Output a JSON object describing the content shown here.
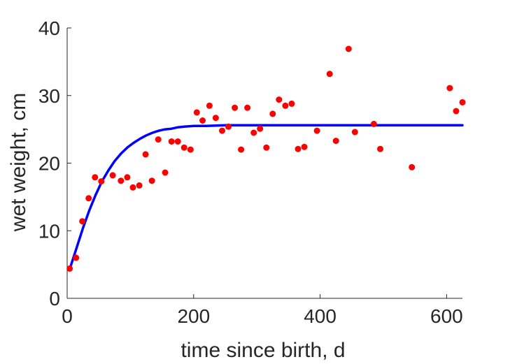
{
  "chart_data": {
    "type": "scatter",
    "xlabel": "time since birth, d",
    "ylabel": "wet weight, cm",
    "xlim": [
      0,
      625
    ],
    "ylim": [
      0,
      40
    ],
    "xticks": [
      {
        "value": 0,
        "label": "0"
      },
      {
        "value": 200,
        "label": "200"
      },
      {
        "value": 400,
        "label": "400"
      },
      {
        "value": 600,
        "label": "600"
      }
    ],
    "yticks": [
      {
        "value": 0,
        "label": "0"
      },
      {
        "value": 10,
        "label": "10"
      },
      {
        "value": 20,
        "label": "20"
      },
      {
        "value": 30,
        "label": "30"
      },
      {
        "value": 40,
        "label": "40"
      }
    ],
    "grid": false,
    "series": [
      {
        "kind": "points",
        "color": "#ff0000",
        "points": [
          [
            4,
            4.4
          ],
          [
            14,
            6.0
          ],
          [
            24,
            11.4
          ],
          [
            34,
            14.8
          ],
          [
            44,
            17.9
          ],
          [
            54,
            17.3
          ],
          [
            72,
            18.2
          ],
          [
            85,
            17.4
          ],
          [
            95,
            17.9
          ],
          [
            104,
            16.4
          ],
          [
            114,
            16.7
          ],
          [
            124,
            21.3
          ],
          [
            134,
            17.4
          ],
          [
            144,
            23.5
          ],
          [
            155,
            18.6
          ],
          [
            165,
            23.2
          ],
          [
            175,
            23.2
          ],
          [
            185,
            22.3
          ],
          [
            195,
            22.0
          ],
          [
            205,
            27.5
          ],
          [
            214,
            26.3
          ],
          [
            225,
            28.5
          ],
          [
            235,
            26.7
          ],
          [
            245,
            24.8
          ],
          [
            255,
            25.4
          ],
          [
            265,
            28.2
          ],
          [
            275,
            22.0
          ],
          [
            285,
            28.2
          ],
          [
            295,
            24.5
          ],
          [
            305,
            25.1
          ],
          [
            315,
            22.3
          ],
          [
            325,
            27.3
          ],
          [
            335,
            29.4
          ],
          [
            345,
            28.5
          ],
          [
            355,
            28.8
          ],
          [
            365,
            22.1
          ],
          [
            375,
            22.4
          ],
          [
            395,
            24.8
          ],
          [
            415,
            33.2
          ],
          [
            425,
            23.3
          ],
          [
            445,
            36.9
          ],
          [
            455,
            24.6
          ],
          [
            485,
            25.8
          ],
          [
            495,
            22.1
          ],
          [
            545,
            19.4
          ],
          [
            605,
            31.1
          ],
          [
            615,
            27.7
          ],
          [
            625,
            29.0
          ]
        ]
      },
      {
        "kind": "line",
        "color": "#0000ff",
        "points": [
          [
            5,
            4.6
          ],
          [
            15,
            7.5
          ],
          [
            25,
            10.4
          ],
          [
            35,
            13.0
          ],
          [
            45,
            15.3
          ],
          [
            55,
            17.3
          ],
          [
            65,
            18.9
          ],
          [
            75,
            20.3
          ],
          [
            85,
            21.4
          ],
          [
            95,
            22.3
          ],
          [
            105,
            23.0
          ],
          [
            115,
            23.6
          ],
          [
            125,
            24.1
          ],
          [
            135,
            24.5
          ],
          [
            145,
            24.8
          ],
          [
            155,
            25.0
          ],
          [
            165,
            25.1
          ],
          [
            175,
            25.3
          ],
          [
            185,
            25.4
          ],
          [
            200,
            25.5
          ],
          [
            220,
            25.5
          ],
          [
            250,
            25.6
          ],
          [
            300,
            25.6
          ],
          [
            400,
            25.6
          ],
          [
            500,
            25.6
          ],
          [
            625,
            25.6
          ]
        ]
      }
    ]
  }
}
